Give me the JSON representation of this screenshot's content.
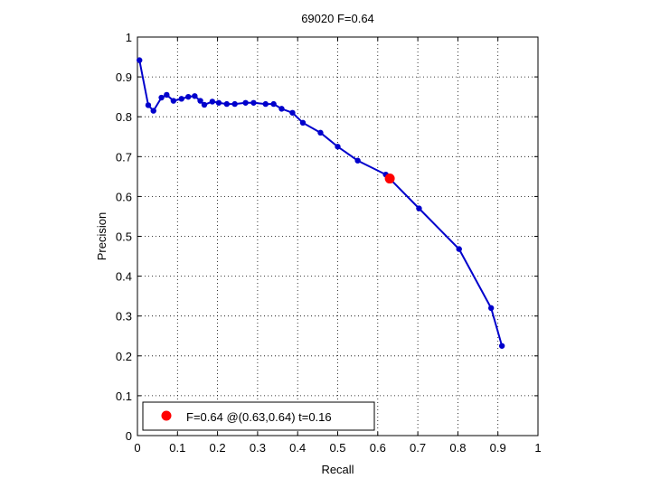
{
  "chart_data": {
    "type": "line",
    "title": "69020 F=0.64",
    "xlabel": "Recall",
    "ylabel": "Precision",
    "xlim": [
      0,
      1
    ],
    "ylim": [
      0,
      1
    ],
    "grid": true,
    "xticks": [
      "0",
      "0.1",
      "0.2",
      "0.3",
      "0.4",
      "0.5",
      "0.6",
      "0.7",
      "0.8",
      "0.9",
      "1"
    ],
    "yticks": [
      "0",
      "0.1",
      "0.2",
      "0.3",
      "0.4",
      "0.5",
      "0.6",
      "0.7",
      "0.8",
      "0.9",
      "1"
    ],
    "series": [
      {
        "color": "#0000cc",
        "points": [
          [
            0.005,
            0.942
          ],
          [
            0.027,
            0.829
          ],
          [
            0.04,
            0.815
          ],
          [
            0.06,
            0.848
          ],
          [
            0.073,
            0.855
          ],
          [
            0.09,
            0.84
          ],
          [
            0.11,
            0.845
          ],
          [
            0.127,
            0.85
          ],
          [
            0.143,
            0.852
          ],
          [
            0.157,
            0.84
          ],
          [
            0.167,
            0.83
          ],
          [
            0.187,
            0.838
          ],
          [
            0.203,
            0.835
          ],
          [
            0.223,
            0.832
          ],
          [
            0.243,
            0.832
          ],
          [
            0.27,
            0.835
          ],
          [
            0.29,
            0.835
          ],
          [
            0.32,
            0.832
          ],
          [
            0.34,
            0.832
          ],
          [
            0.36,
            0.82
          ],
          [
            0.387,
            0.81
          ],
          [
            0.413,
            0.785
          ],
          [
            0.457,
            0.76
          ],
          [
            0.5,
            0.725
          ],
          [
            0.55,
            0.69
          ],
          [
            0.62,
            0.655
          ],
          [
            0.703,
            0.57
          ],
          [
            0.803,
            0.468
          ],
          [
            0.883,
            0.32
          ],
          [
            0.91,
            0.225
          ]
        ]
      }
    ],
    "best_point": {
      "x": 0.63,
      "y": 0.645,
      "color": "#ff0000"
    },
    "legend": {
      "position": "bottom-left",
      "text": "F=0.64 @(0.63,0.64) t=0.16"
    }
  }
}
